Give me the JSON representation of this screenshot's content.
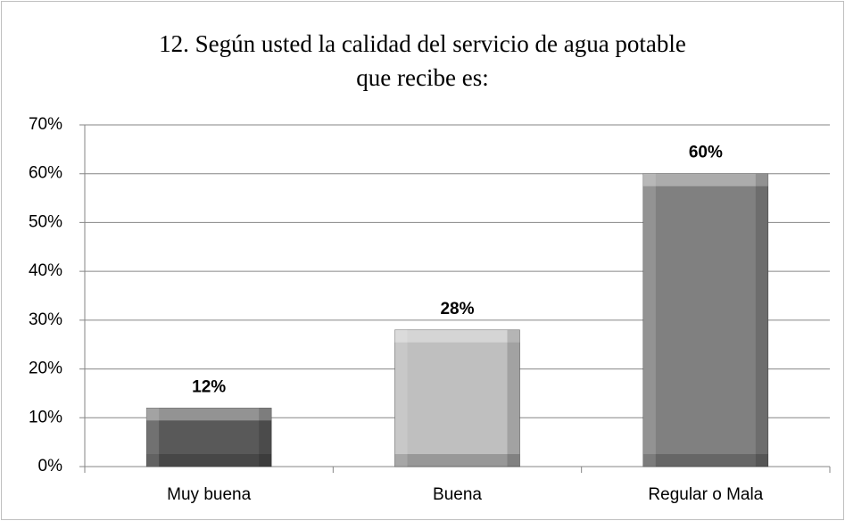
{
  "chart_data": {
    "type": "bar",
    "title": "12.  Según usted la calidad del servicio de agua potable\nque recibe es:",
    "categories": [
      "Muy buena",
      "Buena",
      "Regular o Mala"
    ],
    "values": [
      12,
      28,
      60
    ],
    "value_labels": [
      "12%",
      "28%",
      "60%"
    ],
    "colors": [
      "#595959",
      "#bfbfbf",
      "#808080"
    ],
    "ylim": [
      0,
      70
    ],
    "yticks": [
      {
        "value": 0,
        "label": "0%"
      },
      {
        "value": 10,
        "label": "10%"
      },
      {
        "value": 20,
        "label": "20%"
      },
      {
        "value": 30,
        "label": "30%"
      },
      {
        "value": 40,
        "label": "40%"
      },
      {
        "value": 50,
        "label": "50%"
      },
      {
        "value": 60,
        "label": "60%"
      },
      {
        "value": 70,
        "label": "70%"
      }
    ],
    "grid": true
  }
}
